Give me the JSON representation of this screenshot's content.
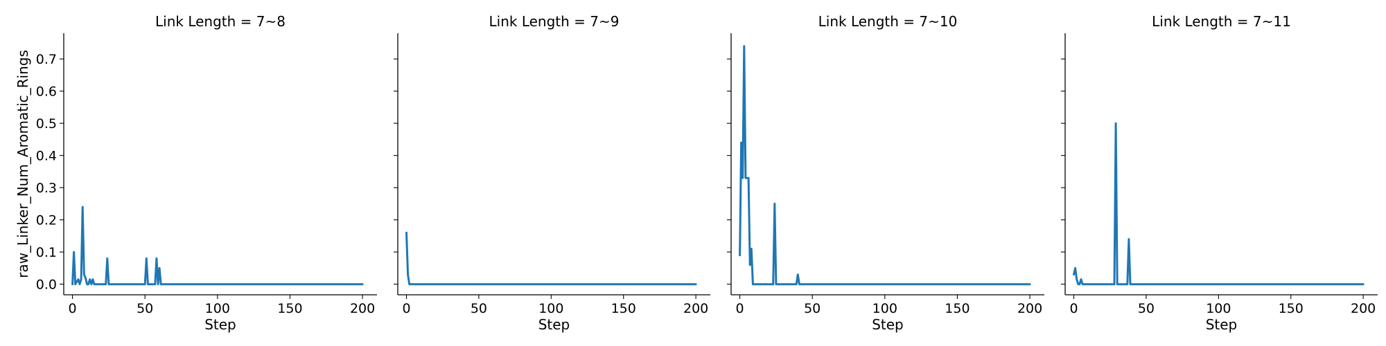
{
  "colors": {
    "series": "#1f77b4",
    "axis": "#000000",
    "background": "#ffffff"
  },
  "chart_data": [
    {
      "type": "line",
      "title": "Link Length = 7~8",
      "xlabel": "Step",
      "ylabel": "raw_Linker_Num_Aromatic_Rings",
      "xlim": [
        -6,
        210
      ],
      "ylim": [
        -0.033,
        0.78
      ],
      "xticks": [
        0,
        50,
        100,
        150,
        200
      ],
      "yticks": [
        0.0,
        0.1,
        0.2,
        0.3,
        0.4,
        0.5,
        0.6,
        0.7
      ],
      "ytick_labels": [
        "0.0",
        "0.1",
        "0.2",
        "0.3",
        "0.4",
        "0.5",
        "0.6",
        "0.7"
      ],
      "grid": false,
      "series": [
        {
          "x": [
            0,
            1,
            2,
            4,
            5,
            6,
            7,
            8,
            9,
            10,
            11,
            12,
            13,
            14,
            15,
            16,
            17,
            22,
            23,
            24,
            25,
            26,
            49,
            50,
            51,
            52,
            53,
            56,
            57,
            58,
            59,
            60,
            61,
            62,
            63,
            200
          ],
          "y": [
            0.0,
            0.1,
            0.0,
            0.015,
            0.0,
            0.015,
            0.24,
            0.03,
            0.02,
            0.0,
            0.0,
            0.015,
            0.0,
            0.015,
            0.0,
            0.0,
            0.0,
            0.0,
            0.0,
            0.08,
            0.0,
            0.0,
            0.0,
            0.0,
            0.08,
            0.0,
            0.0,
            0.0,
            0.0,
            0.08,
            0.0,
            0.05,
            0.0,
            0.0,
            0.0,
            0.0
          ]
        }
      ]
    },
    {
      "type": "line",
      "title": "Link Length = 7~9",
      "xlabel": "Step",
      "ylabel": "",
      "xlim": [
        -6,
        210
      ],
      "ylim": [
        -0.033,
        0.78
      ],
      "xticks": [
        0,
        50,
        100,
        150,
        200
      ],
      "yticks": [
        0.0,
        0.1,
        0.2,
        0.3,
        0.4,
        0.5,
        0.6,
        0.7
      ],
      "grid": false,
      "series": [
        {
          "x": [
            0,
            1,
            2,
            200
          ],
          "y": [
            0.16,
            0.03,
            0.0,
            0.0
          ]
        }
      ]
    },
    {
      "type": "line",
      "title": "Link Length = 7~10",
      "xlabel": "Step",
      "ylabel": "",
      "xlim": [
        -6,
        210
      ],
      "ylim": [
        -0.033,
        0.78
      ],
      "xticks": [
        0,
        50,
        100,
        150,
        200
      ],
      "yticks": [
        0.0,
        0.1,
        0.2,
        0.3,
        0.4,
        0.5,
        0.6,
        0.7
      ],
      "grid": false,
      "series": [
        {
          "x": [
            0,
            1,
            2,
            3,
            4,
            5,
            6,
            7,
            8,
            9,
            10,
            23,
            24,
            25,
            39,
            40,
            41,
            200
          ],
          "y": [
            0.09,
            0.44,
            0.33,
            0.74,
            0.33,
            0.33,
            0.33,
            0.06,
            0.11,
            0.0,
            0.0,
            0.0,
            0.25,
            0.0,
            0.0,
            0.03,
            0.0,
            0.0
          ]
        }
      ]
    },
    {
      "type": "line",
      "title": "Link Length = 7~11",
      "xlabel": "Step",
      "ylabel": "",
      "xlim": [
        -6,
        210
      ],
      "ylim": [
        -0.033,
        0.78
      ],
      "xticks": [
        0,
        50,
        100,
        150,
        200
      ],
      "yticks": [
        0.0,
        0.1,
        0.2,
        0.3,
        0.4,
        0.5,
        0.6,
        0.7
      ],
      "grid": false,
      "series": [
        {
          "x": [
            0,
            1,
            2,
            3,
            4,
            5,
            6,
            7,
            8,
            27,
            28,
            29,
            30,
            36,
            37,
            38,
            39,
            200
          ],
          "y": [
            0.03,
            0.05,
            0.015,
            0.0,
            0.0,
            0.015,
            0.0,
            0.0,
            0.0,
            0.0,
            0.0,
            0.5,
            0.0,
            0.0,
            0.0,
            0.14,
            0.0,
            0.0
          ]
        }
      ]
    }
  ]
}
